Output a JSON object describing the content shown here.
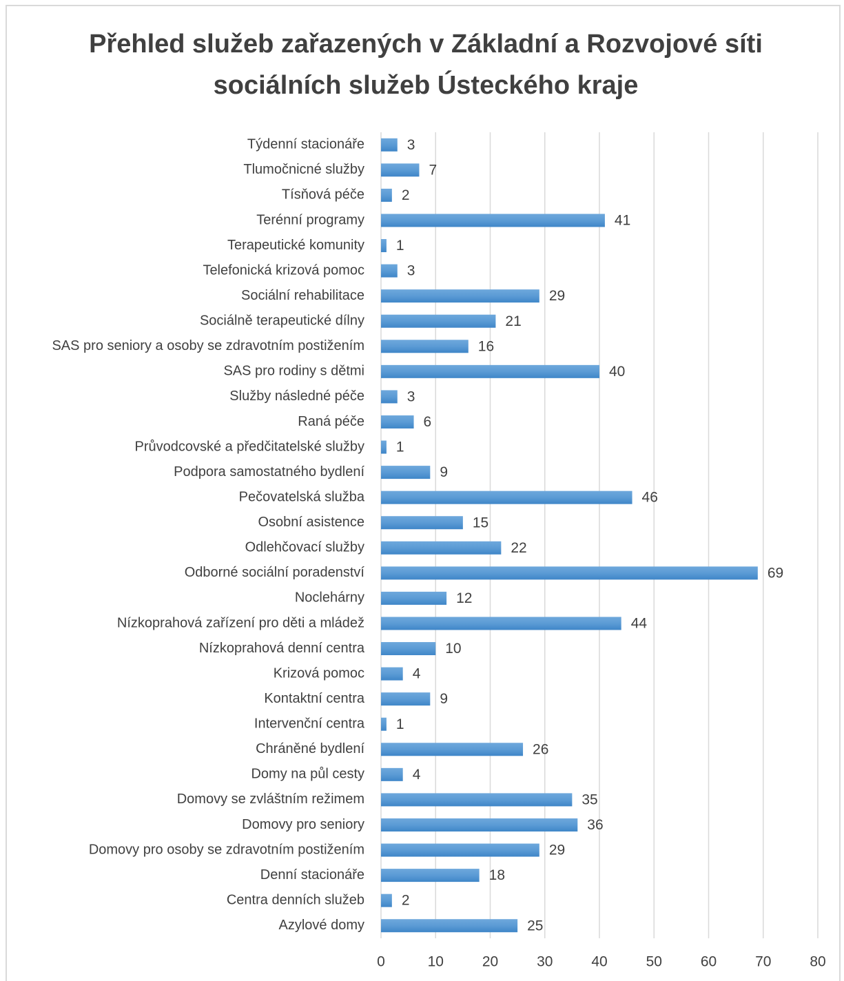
{
  "chart_data": {
    "type": "bar",
    "orientation": "horizontal",
    "title": [
      "Přehled služeb zařazených v Základní a Rozvojové síti",
      "sociálních služeb Ústeckého kraje"
    ],
    "categories": [
      "Týdenní stacionáře",
      "Tlumočnicné služby",
      "Tísňová péče",
      "Terénní programy",
      "Terapeutické komunity",
      "Telefonická krizová pomoc",
      "Sociální rehabilitace",
      "Sociálně terapeutické dílny",
      "SAS pro seniory a osoby se zdravotním postižením",
      "SAS pro rodiny s dětmi",
      "Služby následné péče",
      "Raná péče",
      "Průvodcovské a předčitatelské služby",
      "Podpora samostatného bydlení",
      "Pečovatelská služba",
      "Osobní asistence",
      "Odlehčovací služby",
      "Odborné sociální poradenství",
      "Noclehárny",
      "Nízkoprahová zařízení pro děti a mládež",
      "Nízkoprahová denní centra",
      "Krizová pomoc",
      "Kontaktní centra",
      "Intervenční centra",
      "Chráněné bydlení",
      "Domy na půl cesty",
      "Domovy se zvláštním režimem",
      "Domovy pro seniory",
      "Domovy pro osoby se zdravotním postižením",
      "Denní stacionáře",
      "Centra denních služeb",
      "Azylové domy"
    ],
    "values": [
      3,
      7,
      2,
      41,
      1,
      3,
      29,
      21,
      16,
      40,
      3,
      6,
      1,
      9,
      46,
      15,
      22,
      69,
      12,
      44,
      10,
      4,
      9,
      1,
      26,
      4,
      35,
      36,
      29,
      18,
      2,
      25
    ],
    "color": "#5b9bd5",
    "xlim": [
      0,
      80
    ],
    "xticks": [
      0,
      10,
      20,
      30,
      40,
      50,
      60,
      70,
      80
    ],
    "grid": true
  }
}
